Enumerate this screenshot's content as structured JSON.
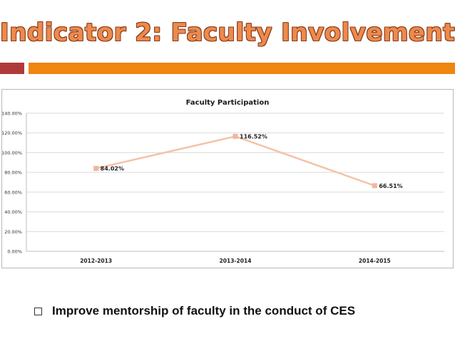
{
  "slide": {
    "title": "Indicator 2: Faculty Involvement",
    "bullet": "Improve mentorship of faculty in the conduct of CES"
  },
  "colors": {
    "title": "#ec8a4e",
    "title_outline": "#8a3a14",
    "bar_dark": "#b03a3a",
    "bar_orange": "#f0860f",
    "series_line": "#f5c2a8",
    "series_marker": "#f0b79c",
    "grid": "#d9d9d9"
  },
  "chart_data": {
    "type": "line",
    "title": "Faculty Participation",
    "categories": [
      "2012-2013",
      "2013-2014",
      "2014-2015"
    ],
    "series": [
      {
        "name": "Faculty Participation",
        "values": [
          84.02,
          116.52,
          66.51
        ],
        "labels": [
          "84.02%",
          "116.52%",
          "66.51%"
        ]
      }
    ],
    "ylim": [
      0,
      140
    ],
    "yticks": [
      0,
      20,
      40,
      60,
      80,
      100,
      120,
      140
    ],
    "ytick_labels": [
      "0.00%",
      "20.00%",
      "40.00%",
      "60.00%",
      "80.00%",
      "100.00%",
      "120.00%",
      "140.00%"
    ],
    "xlabel": "",
    "ylabel": "",
    "grid": true,
    "legend": "none"
  }
}
